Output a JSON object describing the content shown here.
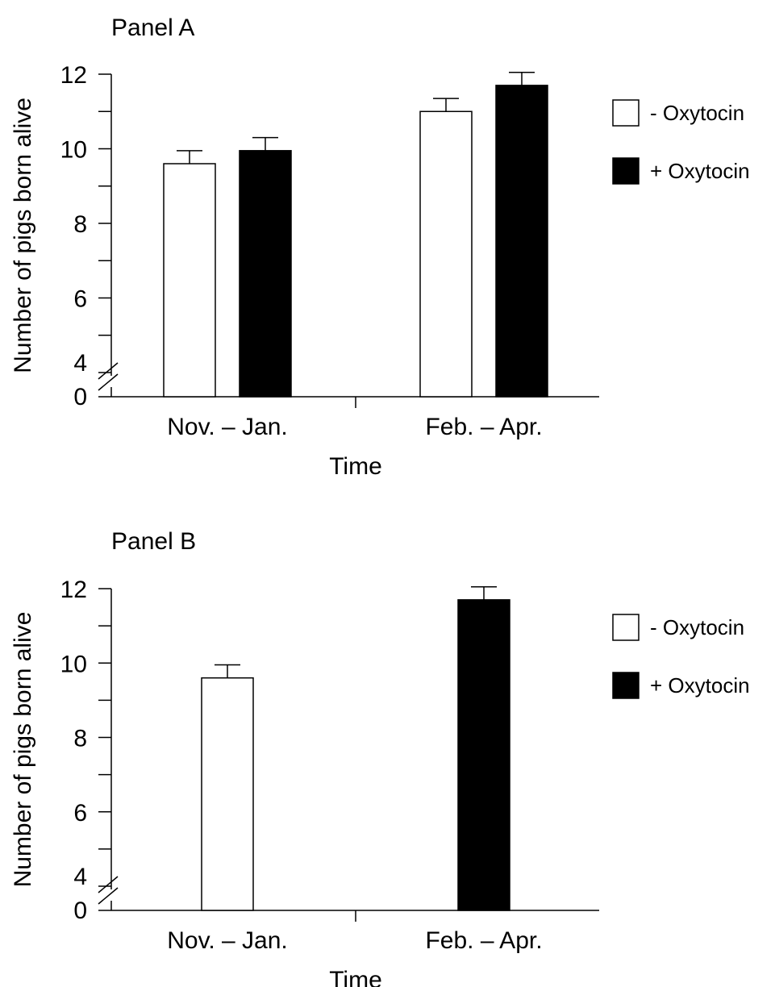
{
  "chart_data": [
    {
      "type": "bar",
      "title": "Panel A",
      "xlabel": "Time",
      "ylabel": "Number of pigs born alive",
      "categories": [
        "Nov. – Jan.",
        "Feb. – Apr."
      ],
      "series": [
        {
          "name": "- Oxytocin",
          "values": [
            9.6,
            11.0
          ],
          "errors": [
            0.35,
            0.35
          ],
          "color": "#ffffff"
        },
        {
          "name": "+ Oxytocin",
          "values": [
            9.95,
            11.7
          ],
          "errors": [
            0.35,
            0.35
          ],
          "color": "#000000"
        }
      ],
      "ylim": [
        4,
        12
      ],
      "yticks_labeled": [
        "0",
        "4",
        "6",
        "8",
        "10",
        "12"
      ],
      "axis_break": true,
      "grid": false,
      "legend_position": "right"
    },
    {
      "type": "bar",
      "title": "Panel B",
      "xlabel": "Time",
      "ylabel": "Number of pigs born alive",
      "categories": [
        "Nov. – Jan.",
        "Feb. – Apr."
      ],
      "series": [
        {
          "name": "- Oxytocin",
          "values": [
            9.6,
            null
          ],
          "errors": [
            0.35,
            null
          ],
          "color": "#ffffff"
        },
        {
          "name": "+ Oxytocin",
          "values": [
            null,
            11.7
          ],
          "errors": [
            null,
            0.35
          ],
          "color": "#000000"
        }
      ],
      "ylim": [
        4,
        12
      ],
      "yticks_labeled": [
        "0",
        "4",
        "6",
        "8",
        "10",
        "12"
      ],
      "axis_break": true,
      "grid": false,
      "legend_position": "right"
    }
  ]
}
